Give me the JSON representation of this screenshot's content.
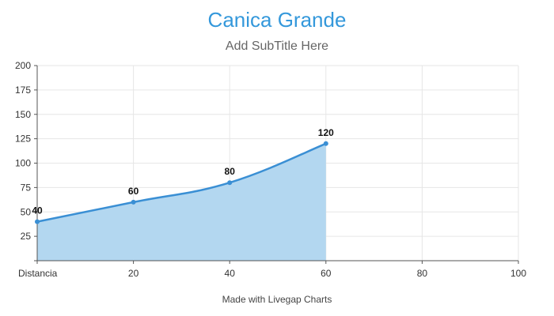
{
  "chart_data": {
    "type": "area",
    "title": "Canica Grande",
    "subtitle": "Add SubTitle Here",
    "x": [
      0,
      20,
      40,
      60
    ],
    "values": [
      40,
      60,
      80,
      120
    ],
    "data_labels": [
      "40",
      "60",
      "80",
      "120"
    ],
    "xlim": [
      0,
      100
    ],
    "ylim": [
      0,
      200
    ],
    "x_ticks": [
      {
        "value": 0,
        "label": "Distancia"
      },
      {
        "value": 20,
        "label": "20"
      },
      {
        "value": 40,
        "label": "40"
      },
      {
        "value": 60,
        "label": "60"
      },
      {
        "value": 80,
        "label": "80"
      },
      {
        "value": 100,
        "label": "100"
      }
    ],
    "y_ticks": [
      {
        "value": 25,
        "label": "25"
      },
      {
        "value": 50,
        "label": "50"
      },
      {
        "value": 75,
        "label": "75"
      },
      {
        "value": 100,
        "label": "100"
      },
      {
        "value": 125,
        "label": "125"
      },
      {
        "value": 150,
        "label": "150"
      },
      {
        "value": 175,
        "label": "175"
      },
      {
        "value": 200,
        "label": "200"
      }
    ],
    "grid": true,
    "legend": "none",
    "line_color": "#3a8fd4",
    "fill_color": "#b3d7f0",
    "credit": "Made with Livegap Charts"
  }
}
